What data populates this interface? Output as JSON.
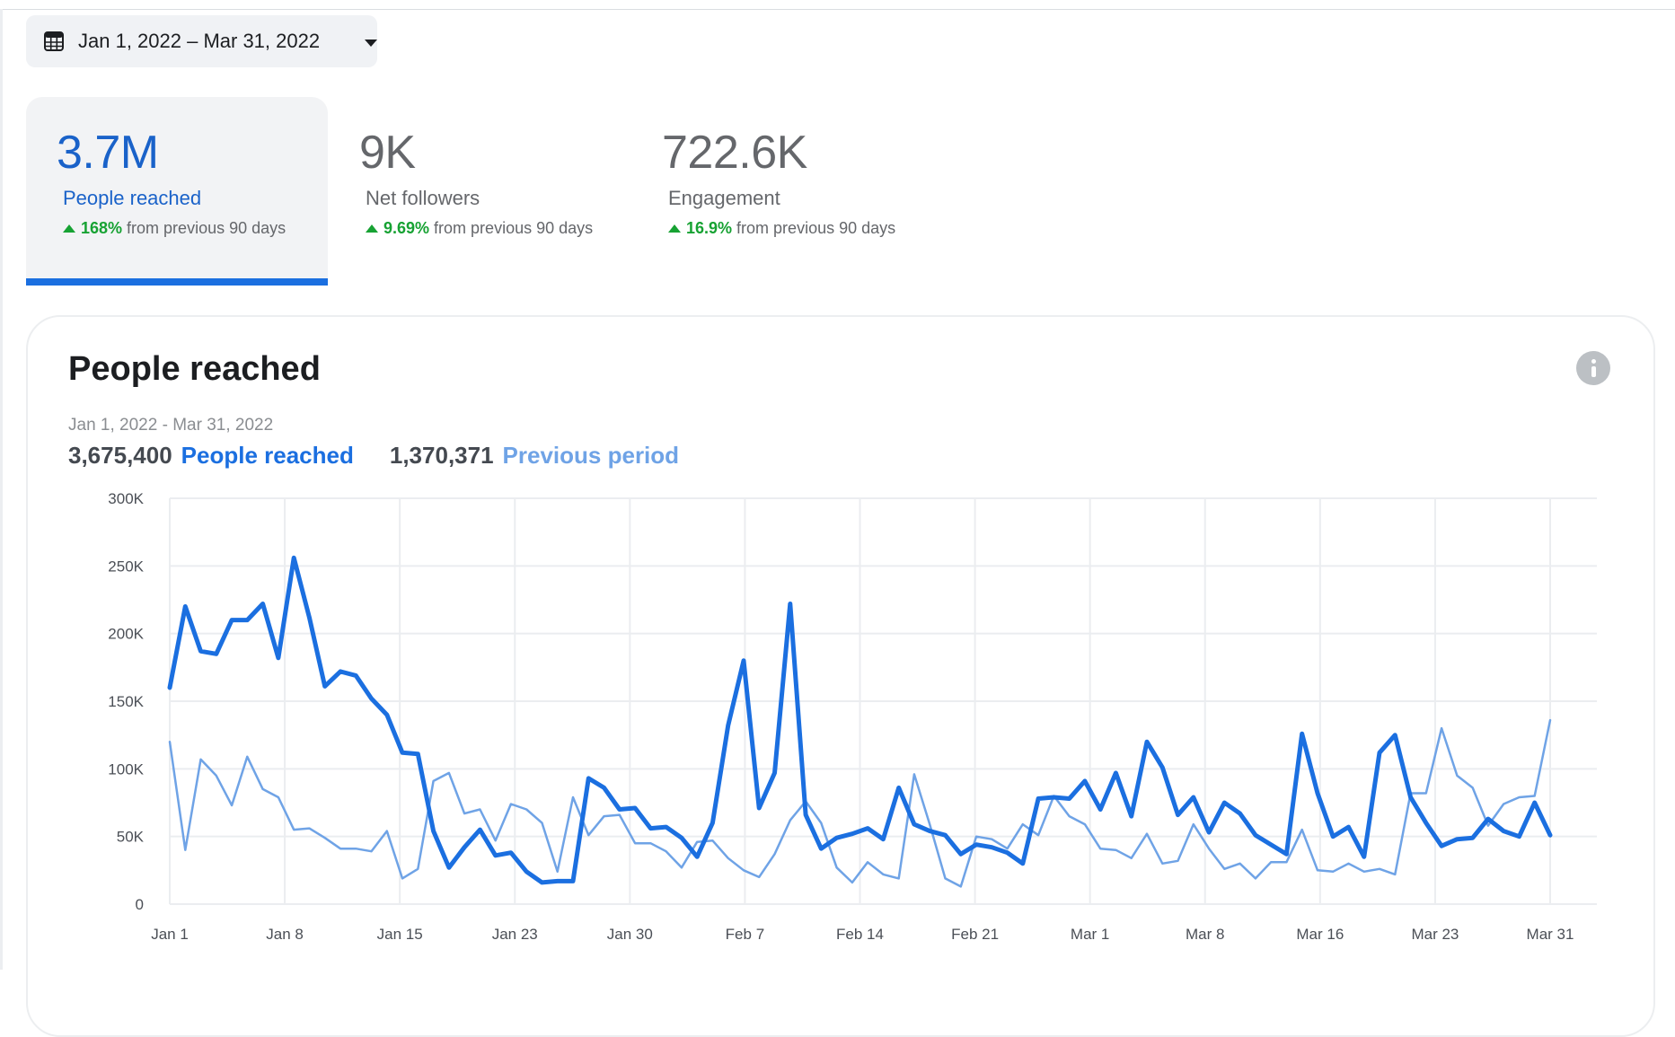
{
  "date_range": {
    "label": "Jan 1, 2022 – Mar 31, 2022",
    "icon": "calendar-icon",
    "dropdown_icon": "caret-down-icon"
  },
  "metrics": [
    {
      "value": "3.7M",
      "name": "People reached",
      "change_pct": "168%",
      "change_text": "from previous 90 days",
      "active": true
    },
    {
      "value": "9K",
      "name": "Net followers",
      "change_pct": "9.69%",
      "change_text": "from previous 90 days",
      "active": false
    },
    {
      "value": "722.6K",
      "name": "Engagement",
      "change_pct": "16.9%",
      "change_text": "from previous 90 days",
      "active": false
    }
  ],
  "card": {
    "title": "People reached",
    "info_icon": "info-icon",
    "subtitle_date": "Jan 1, 2022 - Mar 31, 2022",
    "current_total": "3,675,400",
    "current_label": "People reached",
    "previous_total": "1,370,371",
    "previous_label": "Previous period"
  },
  "colors": {
    "accent": "#1b6fe0",
    "previous": "#6fa3e6",
    "positive": "#17a233",
    "grid": "#ebedf0"
  },
  "chart_data": {
    "type": "line",
    "title": "People reached",
    "xlabel": "",
    "ylabel": "",
    "ylim": [
      0,
      300000
    ],
    "yticks": [
      0,
      50000,
      100000,
      150000,
      200000,
      250000,
      300000
    ],
    "ytick_labels": [
      "0",
      "50K",
      "100K",
      "150K",
      "200K",
      "250K",
      "300K"
    ],
    "xtick_labels": [
      "Jan 1",
      "Jan 8",
      "Jan 15",
      "Jan 23",
      "Jan 30",
      "Feb 7",
      "Feb 14",
      "Feb 21",
      "Mar 1",
      "Mar 8",
      "Mar 16",
      "Mar 23",
      "Mar 31"
    ],
    "grid": true,
    "legend": "top-left",
    "series": [
      {
        "name": "People reached",
        "values": [
          160000,
          220000,
          187000,
          185000,
          210000,
          210000,
          222000,
          182000,
          256000,
          212000,
          161000,
          172000,
          169000,
          152000,
          140000,
          112000,
          111000,
          54000,
          27000,
          42000,
          55000,
          36000,
          38000,
          24000,
          16000,
          17000,
          17000,
          93000,
          86000,
          70000,
          71000,
          56000,
          57000,
          49000,
          35000,
          60000,
          132000,
          180000,
          71000,
          97000,
          222000,
          66000,
          41000,
          49000,
          52000,
          56000,
          48000,
          86000,
          59000,
          54000,
          51000,
          37000,
          44000,
          42000,
          38000,
          30000,
          78000,
          79000,
          78000,
          91000,
          70000,
          97000,
          65000,
          120000,
          101000,
          66000,
          79000,
          53000,
          75000,
          67000,
          51000,
          44000,
          37000,
          126000,
          82000,
          50000,
          57000,
          35000,
          112000,
          125000,
          79000,
          60000,
          43000,
          48000,
          49000,
          63000,
          54000,
          50000,
          75000,
          51000
        ]
      },
      {
        "name": "Previous period",
        "values": [
          120000,
          40000,
          107000,
          95000,
          73000,
          109000,
          85000,
          79000,
          55000,
          56000,
          49000,
          41000,
          41000,
          39000,
          54000,
          19000,
          26000,
          91000,
          97000,
          67000,
          70000,
          47000,
          74000,
          70000,
          60000,
          24000,
          79000,
          51000,
          65000,
          66000,
          45000,
          45000,
          39000,
          27000,
          46000,
          47000,
          34000,
          25000,
          20000,
          37000,
          62000,
          76000,
          60000,
          27000,
          16000,
          31000,
          22000,
          19000,
          96000,
          59000,
          19000,
          13000,
          50000,
          48000,
          41000,
          59000,
          51000,
          80000,
          65000,
          59000,
          41000,
          40000,
          34000,
          52000,
          30000,
          32000,
          59000,
          41000,
          26000,
          30000,
          19000,
          31000,
          31000,
          55000,
          25000,
          24000,
          30000,
          24000,
          26000,
          22000,
          82000,
          82000,
          130000,
          95000,
          86000,
          58000,
          74000,
          79000,
          80000,
          136000
        ]
      }
    ]
  }
}
